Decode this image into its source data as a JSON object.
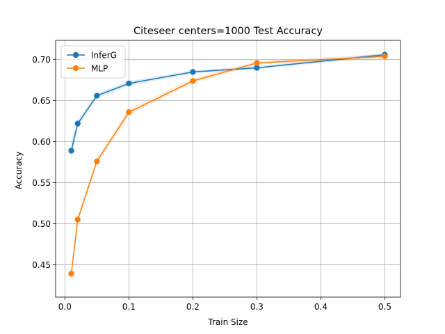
{
  "chart_data": {
    "type": "line",
    "title": "Citeseer  centers=1000 Test Accuracy",
    "xlabel": "Train Size",
    "ylabel": "Accuracy",
    "xlim": [
      -0.0145,
      0.5245
    ],
    "ylim": [
      0.4105,
      0.7235
    ],
    "xticks": [
      0.0,
      0.1,
      0.2,
      0.3,
      0.4,
      0.5
    ],
    "xtick_labels": [
      "0.0",
      "0.1",
      "0.2",
      "0.3",
      "0.4",
      "0.5"
    ],
    "yticks": [
      0.45,
      0.5,
      0.55,
      0.6,
      0.65,
      0.7
    ],
    "ytick_labels": [
      "0.45",
      "0.50",
      "0.55",
      "0.60",
      "0.65",
      "0.70"
    ],
    "grid": true,
    "legend_position": "upper-left",
    "series": [
      {
        "name": "InferG",
        "color": "#1f77b4",
        "x": [
          0.01,
          0.02,
          0.05,
          0.1,
          0.2,
          0.3,
          0.5
        ],
        "y": [
          0.589,
          0.622,
          0.656,
          0.671,
          0.685,
          0.69,
          0.706
        ],
        "band": [
          0.012,
          0.004,
          0.003,
          0.003,
          0.002,
          0.002,
          0.002
        ]
      },
      {
        "name": "MLP",
        "color": "#ff7f0e",
        "x": [
          0.01,
          0.02,
          0.05,
          0.1,
          0.2,
          0.3,
          0.5
        ],
        "y": [
          0.439,
          0.505,
          0.576,
          0.636,
          0.674,
          0.696,
          0.704
        ],
        "band": [
          0.003,
          0.004,
          0.004,
          0.004,
          0.003,
          0.002,
          0.003
        ]
      }
    ]
  }
}
